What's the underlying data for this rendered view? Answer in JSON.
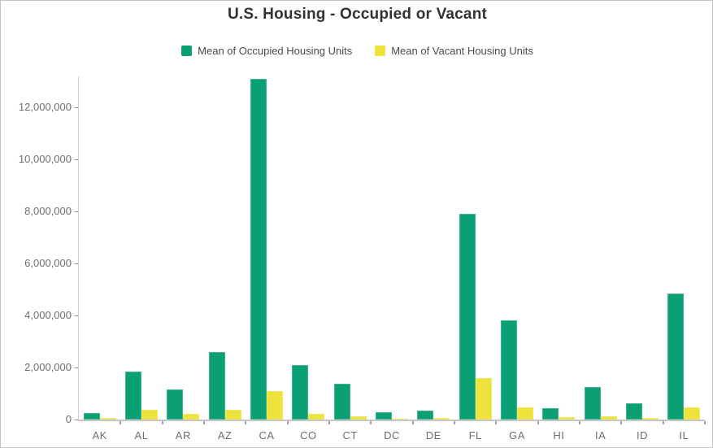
{
  "header": {
    "title": "U.S. Housing - Occupied or Vacant"
  },
  "legend": {
    "items": [
      {
        "key": "occupied",
        "label": "Mean of Occupied Housing Units",
        "color": "#0aa073"
      },
      {
        "key": "vacant",
        "label": "Mean of Vacant Housing Units",
        "color": "#ede33c"
      }
    ]
  },
  "chart_data": {
    "type": "bar",
    "title": "U.S. Housing - Occupied or Vacant",
    "categories": [
      "AK",
      "AL",
      "AR",
      "AZ",
      "CA",
      "CO",
      "CT",
      "DC",
      "DE",
      "FL",
      "GA",
      "HI",
      "IA",
      "ID",
      "IL"
    ],
    "series": [
      {
        "name": "Mean of Occupied Housing Units",
        "color": "#0aa073",
        "values": [
          240000,
          1860000,
          1160000,
          2610000,
          13100000,
          2090000,
          1370000,
          270000,
          350000,
          7910000,
          3820000,
          450000,
          1250000,
          630000,
          4860000
        ]
      },
      {
        "name": "Mean of Vacant Housing Units",
        "color": "#ede33c",
        "values": [
          60000,
          360000,
          210000,
          390000,
          1080000,
          230000,
          120000,
          40000,
          55000,
          1600000,
          460000,
          80000,
          130000,
          75000,
          460000
        ]
      }
    ],
    "xlabel": "",
    "ylabel": "",
    "ylim": [
      0,
      13200000
    ],
    "yticks": [
      0,
      2000000,
      4000000,
      6000000,
      8000000,
      10000000,
      12000000
    ],
    "grid": false,
    "legend_position": "top"
  },
  "style": {
    "title_color": "#323232",
    "legend_text_color": "#4a4a4a",
    "axis_label_color": "#6e6e6e",
    "axis_line_color": "#d2d2d2",
    "tick_color": "#9b9b9b"
  }
}
